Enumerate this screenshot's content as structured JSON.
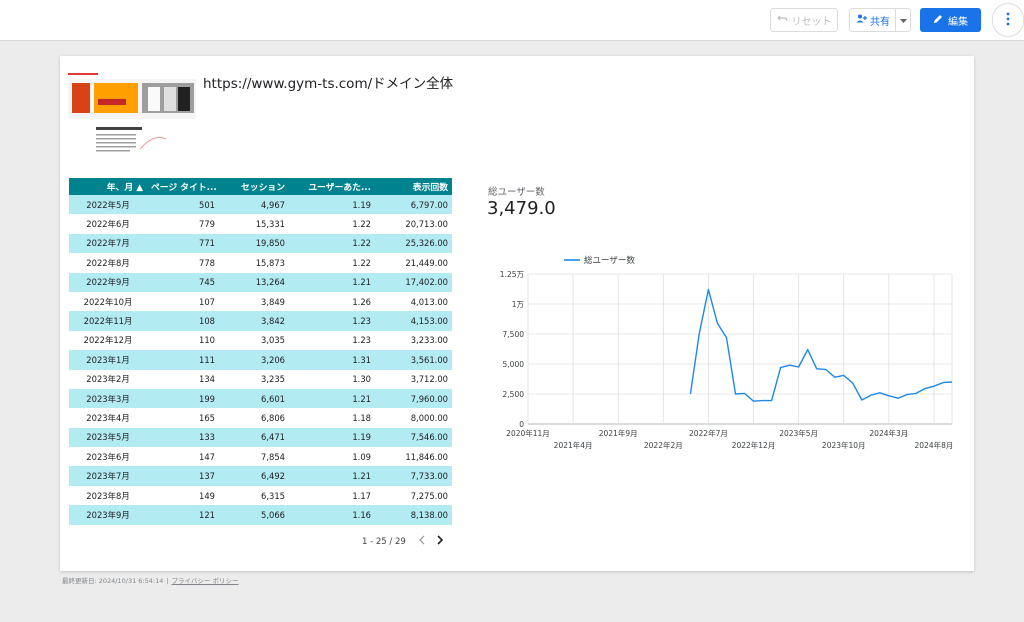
{
  "toolbar": {
    "reset_label": "リセット",
    "share_label": "共有",
    "edit_label": "編集"
  },
  "report": {
    "title": "https://www.gym-ts.com/ドメイン全体"
  },
  "table": {
    "headers": [
      "年、月 ▲",
      "ページ タイト...",
      "セッション",
      "ユーザーあた...",
      "表示回数"
    ],
    "rows": [
      [
        "2022年5月",
        "501",
        "4,967",
        "1.19",
        "6,797.00"
      ],
      [
        "2022年6月",
        "779",
        "15,331",
        "1.22",
        "20,713.00"
      ],
      [
        "2022年7月",
        "771",
        "19,850",
        "1.22",
        "25,326.00"
      ],
      [
        "2022年8月",
        "778",
        "15,873",
        "1.22",
        "21,449.00"
      ],
      [
        "2022年9月",
        "745",
        "13,264",
        "1.21",
        "17,402.00"
      ],
      [
        "2022年10月",
        "107",
        "3,849",
        "1.26",
        "4,013.00"
      ],
      [
        "2022年11月",
        "108",
        "3,842",
        "1.23",
        "4,153.00"
      ],
      [
        "2022年12月",
        "110",
        "3,035",
        "1.23",
        "3,233.00"
      ],
      [
        "2023年1月",
        "111",
        "3,206",
        "1.31",
        "3,561.00"
      ],
      [
        "2023年2月",
        "134",
        "3,235",
        "1.30",
        "3,712.00"
      ],
      [
        "2023年3月",
        "199",
        "6,601",
        "1.21",
        "7,960.00"
      ],
      [
        "2023年4月",
        "165",
        "6,806",
        "1.18",
        "8,000.00"
      ],
      [
        "2023年5月",
        "133",
        "6,471",
        "1.19",
        "7,546.00"
      ],
      [
        "2023年6月",
        "147",
        "7,854",
        "1.09",
        "11,846.00"
      ],
      [
        "2023年7月",
        "137",
        "6,492",
        "1.21",
        "7,733.00"
      ],
      [
        "2023年8月",
        "149",
        "6,315",
        "1.17",
        "7,275.00"
      ],
      [
        "2023年9月",
        "121",
        "5,066",
        "1.16",
        "8,138.00"
      ]
    ],
    "pagination": "1 - 25 / 29"
  },
  "scorecard": {
    "label": "総ユーザー数",
    "value": "3,479.0"
  },
  "footer": {
    "updated": "最終更新日: 2024/10/31 6:54:14",
    "separator": "|",
    "privacy": "プライバシー ポリシー"
  },
  "colors": {
    "accent": "#1a73e8",
    "table_header": "#00838f",
    "table_stripe": "#b2ebf2",
    "line": "#1e88e5"
  },
  "chart_data": {
    "type": "line",
    "title": "",
    "legend_position": "top-left",
    "grid": true,
    "series": [
      {
        "name": "総ユーザー数",
        "x": [
          "2022-05",
          "2022-06",
          "2022-07",
          "2022-08",
          "2022-09",
          "2022-10",
          "2022-11",
          "2022-12",
          "2023-01",
          "2023-02",
          "2023-03",
          "2023-04",
          "2023-05",
          "2023-06",
          "2023-07",
          "2023-08",
          "2023-09",
          "2023-10",
          "2023-11",
          "2023-12",
          "2024-01",
          "2024-02",
          "2024-03",
          "2024-04",
          "2024-05",
          "2024-06",
          "2024-07",
          "2024-08",
          "2024-09",
          "2024-10"
        ],
        "values": [
          2500,
          7600,
          11200,
          8400,
          7200,
          2500,
          2550,
          1900,
          1950,
          1950,
          4700,
          4900,
          4750,
          6200,
          4600,
          4550,
          3900,
          4050,
          3400,
          2000,
          2400,
          2600,
          2350,
          2150,
          2450,
          2550,
          2950,
          3150,
          3450,
          3500
        ]
      }
    ],
    "x_ticks": [
      "2020年11月",
      "2021年4月",
      "2021年9月",
      "2022年2月",
      "2022年7月",
      "2022年12月",
      "2023年5月",
      "2023年10月",
      "2024年3月",
      "2024年8月"
    ],
    "y_ticks": [
      "0",
      "2,500",
      "5,000",
      "7,500",
      "1万",
      "1.25万"
    ],
    "ylim": [
      0,
      12500
    ],
    "xlim": [
      "2020-11",
      "2024-10"
    ]
  }
}
